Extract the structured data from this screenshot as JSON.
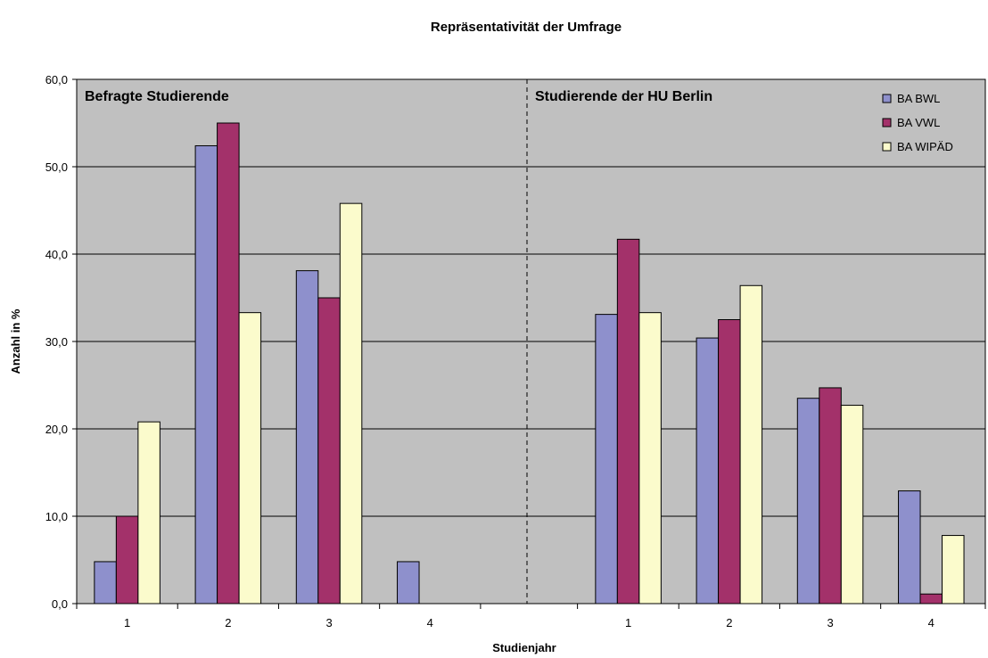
{
  "chart_data": {
    "type": "bar",
    "title": "Repräsentativität der Umfrage",
    "xlabel": "Studienjahr",
    "ylabel": "Anzahl in %",
    "ylim": [
      0,
      60
    ],
    "yticks": [
      "0,0",
      "10,0",
      "20,0",
      "30,0",
      "40,0",
      "50,0",
      "60,0"
    ],
    "grid": true,
    "legend": "top-right",
    "colors": [
      "#8E90CC",
      "#A3316A",
      "#FBFBCC"
    ],
    "plot_bg": "#C0C0C0",
    "series_names": [
      "BA BWL",
      "BA VWL",
      "BA WIPÄD"
    ],
    "panels": [
      {
        "label": "Befragte Studierende",
        "categories": [
          "1",
          "2",
          "3",
          "4"
        ],
        "series": [
          {
            "name": "BA BWL",
            "values": [
              4.8,
              52.4,
              38.1,
              4.8
            ]
          },
          {
            "name": "BA VWL",
            "values": [
              10.0,
              55.0,
              35.0,
              0
            ]
          },
          {
            "name": "BA WIPÄD",
            "values": [
              20.8,
              33.3,
              45.8,
              0
            ]
          }
        ]
      },
      {
        "label": "Studierende der HU Berlin",
        "categories": [
          "1",
          "2",
          "3",
          "4"
        ],
        "series": [
          {
            "name": "BA BWL",
            "values": [
              33.1,
              30.4,
              23.5,
              12.9
            ]
          },
          {
            "name": "BA VWL",
            "values": [
              41.7,
              32.5,
              24.7,
              1.1
            ]
          },
          {
            "name": "BA WIPÄD",
            "values": [
              33.3,
              36.4,
              22.7,
              7.8
            ]
          }
        ]
      }
    ]
  }
}
